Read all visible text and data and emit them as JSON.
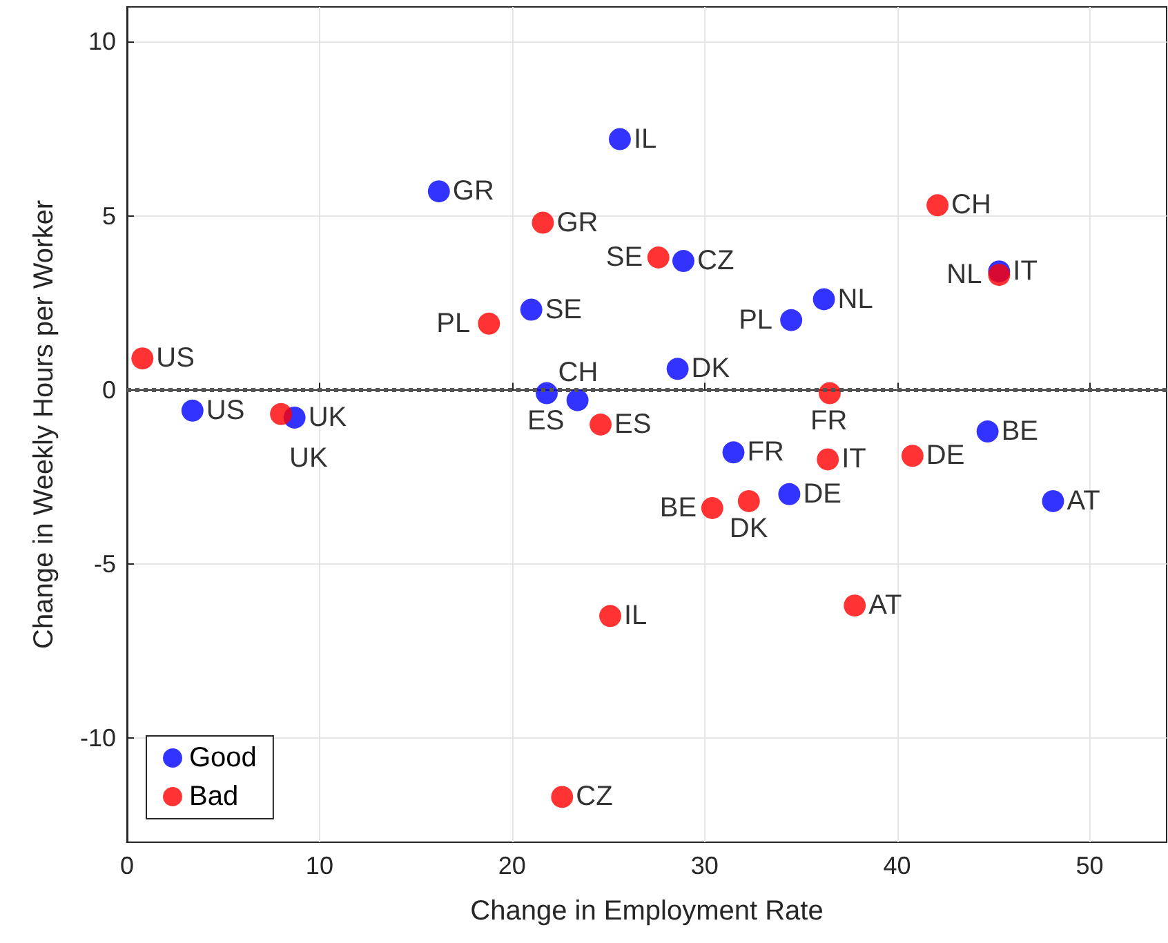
{
  "chart_data": {
    "type": "scatter",
    "xlabel": "Change in Employment Rate",
    "ylabel": "Change in Weekly Hours per Worker",
    "xlim": [
      0,
      54
    ],
    "xticks": [
      0,
      10,
      20,
      30,
      40,
      50
    ],
    "ylim": [
      -13,
      11
    ],
    "yticks": [
      -10,
      -5,
      0,
      5,
      10
    ],
    "grid": true,
    "legend": "bottom left",
    "marker": "circle",
    "ref_lines": [
      {
        "axis": "y",
        "value": 0,
        "color": "#555555",
        "line_style": "dotted"
      }
    ],
    "series": [
      {
        "name": "Good",
        "color": "#0000ff",
        "x": [
          3.4,
          8.7,
          16.2,
          25.6,
          21.0,
          21.8,
          23.4,
          28.9,
          28.6,
          31.5,
          34.4,
          34.5,
          36.2,
          44.7,
          45.3,
          48.1
        ],
        "values": [
          -0.6,
          -0.8,
          5.7,
          7.2,
          2.3,
          -0.1,
          -0.3,
          3.7,
          0.6,
          -1.8,
          -3.0,
          2.0,
          2.6,
          -1.2,
          3.4,
          -3.2
        ],
        "value_labels": [
          "US",
          "UK",
          "GR",
          "IL",
          "SE",
          "ES",
          "CH",
          "CZ",
          "DK",
          "FR",
          "DE",
          "PL",
          "NL",
          "BE",
          "IT",
          "AT"
        ]
      },
      {
        "name": "Bad",
        "color": "#ff0000",
        "x": [
          0.8,
          8.0,
          21.6,
          18.8,
          27.6,
          24.6,
          25.1,
          22.6,
          30.4,
          32.3,
          36.5,
          36.4,
          37.8,
          40.8,
          42.1,
          45.3
        ],
        "values": [
          0.9,
          -0.7,
          4.8,
          1.9,
          3.8,
          -1.0,
          -6.5,
          -11.7,
          -3.4,
          -3.2,
          -0.1,
          -2.0,
          -6.2,
          -1.9,
          5.3,
          3.3
        ],
        "value_labels": [
          "US",
          "UK",
          "GR",
          "PL",
          "SE",
          "ES",
          "IL",
          "CZ",
          "BE",
          "DK",
          "FR",
          "IT",
          "AT",
          "DE",
          "CH",
          "NL"
        ]
      }
    ]
  }
}
